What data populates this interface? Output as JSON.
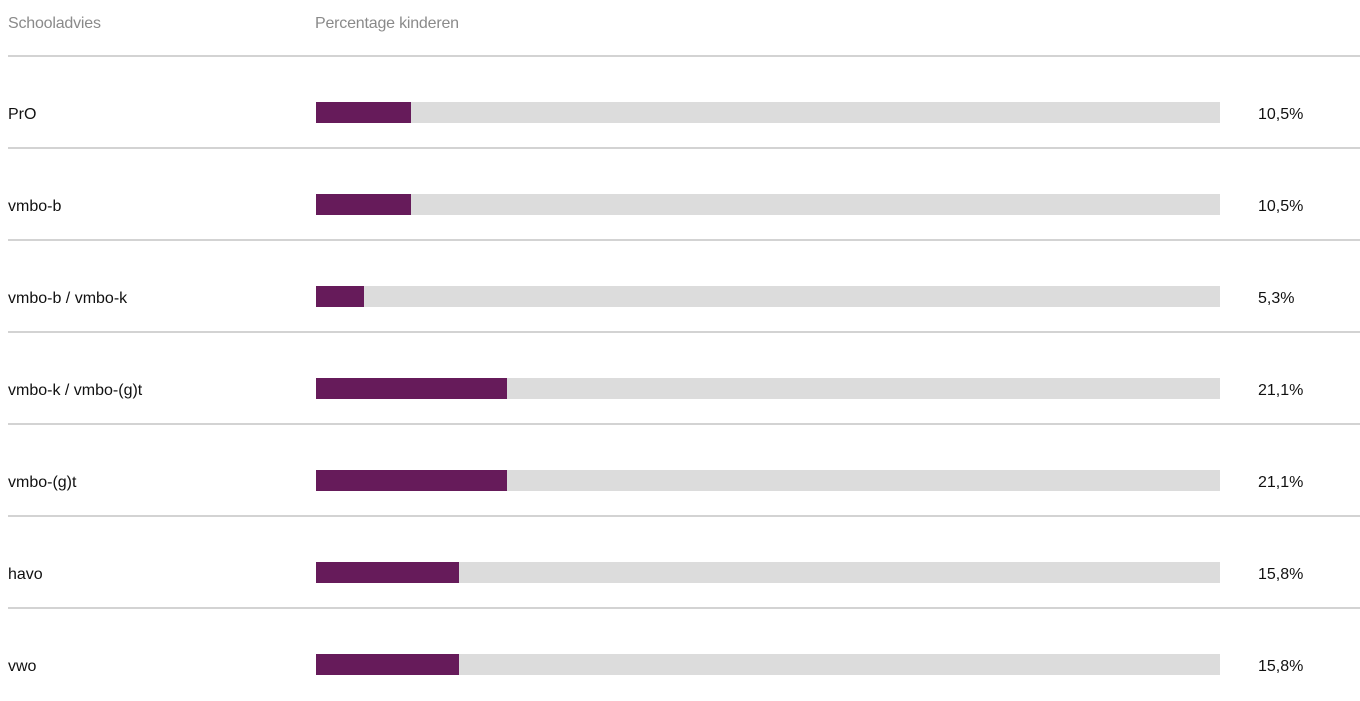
{
  "chart_data": {
    "type": "bar",
    "orientation": "horizontal",
    "column_headers": [
      "Schooladvies",
      "Percentage kinderen"
    ],
    "categories": [
      "PrO",
      "vmbo-b",
      "vmbo-b / vmbo-k",
      "vmbo-k / vmbo-(g)t",
      "vmbo-(g)t",
      "havo",
      "vwo"
    ],
    "values": [
      10.5,
      10.5,
      5.3,
      21.1,
      21.1,
      15.8,
      15.8
    ],
    "value_labels": [
      "10,5%",
      "10,5%",
      "5,3%",
      "21,1%",
      "21,1%",
      "15,8%",
      "15,8%"
    ],
    "xlim": [
      0,
      100
    ],
    "grid": false,
    "legend": "none",
    "colors": {
      "bar": "#661b5a",
      "track": "#dcdcdc",
      "divider": "#d3d3d3",
      "header_text": "#8a8a8a"
    }
  }
}
